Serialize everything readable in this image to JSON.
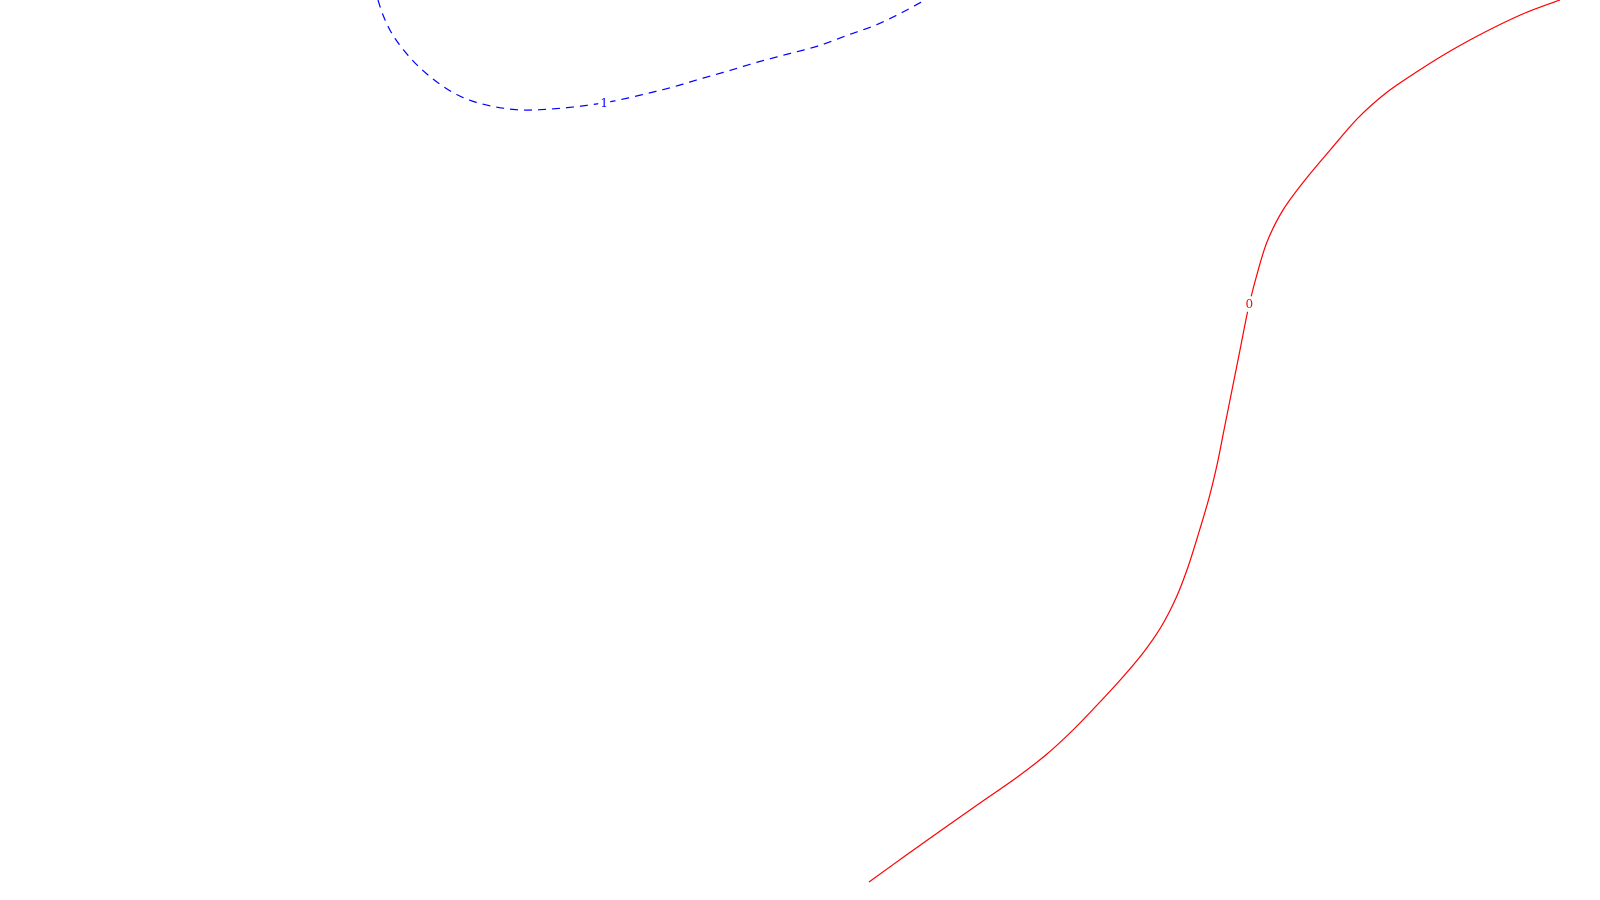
{
  "chart_data": {
    "type": "line",
    "title": "",
    "xlabel": "",
    "ylabel": "",
    "grid": false,
    "legend": "none",
    "series": [
      {
        "level_label": "1",
        "color": "#0000ff",
        "style": "dashed",
        "points": [
          [
            378,
            0
          ],
          [
            383,
            15
          ],
          [
            391,
            32
          ],
          [
            402,
            48
          ],
          [
            416,
            64
          ],
          [
            433,
            79
          ],
          [
            452,
            92
          ],
          [
            472,
            101
          ],
          [
            496,
            107
          ],
          [
            522,
            110
          ],
          [
            551,
            109
          ],
          [
            582,
            106
          ],
          [
            614,
            101
          ],
          [
            645,
            94
          ],
          [
            673,
            87
          ],
          [
            700,
            79
          ],
          [
            728,
            71
          ],
          [
            758,
            62
          ],
          [
            788,
            54
          ],
          [
            818,
            46
          ],
          [
            848,
            35
          ],
          [
            876,
            25
          ],
          [
            903,
            12
          ],
          [
            925,
            0
          ]
        ]
      },
      {
        "level_label": "0",
        "color": "#ff0000",
        "style": "solid",
        "points": [
          [
            869,
            882
          ],
          [
            905,
            856
          ],
          [
            943,
            829
          ],
          [
            980,
            803
          ],
          [
            1016,
            778
          ],
          [
            1047,
            754
          ],
          [
            1074,
            729
          ],
          [
            1099,
            703
          ],
          [
            1122,
            678
          ],
          [
            1143,
            653
          ],
          [
            1161,
            627
          ],
          [
            1176,
            598
          ],
          [
            1188,
            567
          ],
          [
            1199,
            532
          ],
          [
            1209,
            498
          ],
          [
            1217,
            465
          ],
          [
            1224,
            430
          ],
          [
            1232,
            390
          ],
          [
            1240,
            350
          ],
          [
            1248,
            310
          ],
          [
            1256,
            278
          ],
          [
            1267,
            242
          ],
          [
            1283,
            210
          ],
          [
            1305,
            180
          ],
          [
            1331,
            149
          ],
          [
            1358,
            118
          ],
          [
            1386,
            93
          ],
          [
            1418,
            71
          ],
          [
            1452,
            50
          ],
          [
            1489,
            30
          ],
          [
            1525,
            13
          ],
          [
            1560,
            0
          ]
        ]
      }
    ]
  }
}
